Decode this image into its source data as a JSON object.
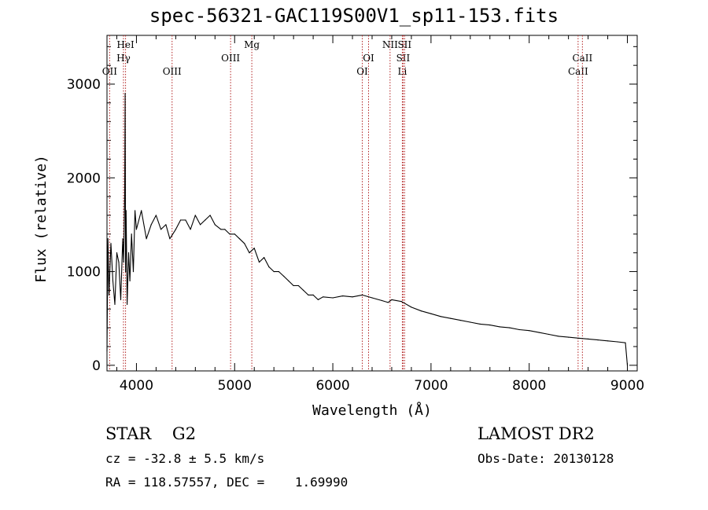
{
  "title": "spec-56321-GAC119S00V1_sp11-153.fits",
  "chart_data": {
    "type": "line",
    "xlabel": "Wavelength (Å)",
    "ylabel": "Flux (relative)",
    "xlim": [
      3700,
      9100
    ],
    "ylim": [
      -60,
      3520
    ],
    "xticks": [
      4000,
      5000,
      6000,
      7000,
      8000,
      9000
    ],
    "yticks": [
      0,
      1000,
      2000,
      3000
    ],
    "series": [
      {
        "x": [
          3700,
          3710,
          3720,
          3740,
          3760,
          3780,
          3800,
          3820,
          3840,
          3860,
          3870,
          3880,
          3885,
          3889,
          3895,
          3905,
          3920,
          3933,
          3950,
          3968,
          3985,
          4000,
          4050,
          4101,
          4150,
          4200,
          4250,
          4300,
          4340,
          4400,
          4450,
          4500,
          4550,
          4600,
          4650,
          4700,
          4750,
          4800,
          4861,
          4900,
          4950,
          5000,
          5050,
          5100,
          5150,
          5200,
          5250,
          5300,
          5350,
          5400,
          5450,
          5500,
          5550,
          5600,
          5650,
          5700,
          5750,
          5800,
          5850,
          5900,
          6000,
          6100,
          6200,
          6300,
          6400,
          6500,
          6563,
          6600,
          6700,
          6800,
          6900,
          7000,
          7100,
          7200,
          7300,
          7400,
          7500,
          7600,
          7700,
          7800,
          7900,
          8000,
          8100,
          8200,
          8300,
          8400,
          8500,
          8600,
          8700,
          8800,
          8900,
          8980,
          9000
        ],
        "y": [
          150,
          1350,
          750,
          1300,
          900,
          650,
          1200,
          1100,
          700,
          1350,
          1100,
          1850,
          2900,
          1000,
          1650,
          650,
          1200,
          900,
          1400,
          1000,
          1650,
          1450,
          1650,
          1350,
          1500,
          1600,
          1450,
          1500,
          1350,
          1450,
          1550,
          1550,
          1450,
          1600,
          1500,
          1550,
          1600,
          1500,
          1450,
          1450,
          1400,
          1400,
          1350,
          1300,
          1200,
          1250,
          1100,
          1150,
          1050,
          1000,
          1000,
          950,
          900,
          850,
          850,
          800,
          750,
          750,
          700,
          730,
          720,
          740,
          730,
          750,
          720,
          690,
          670,
          700,
          680,
          620,
          580,
          550,
          520,
          500,
          480,
          460,
          440,
          430,
          410,
          400,
          380,
          370,
          350,
          330,
          310,
          300,
          290,
          280,
          270,
          260,
          250,
          240,
          0
        ]
      }
    ],
    "lines": [
      {
        "x": 3727,
        "label": "OII",
        "row": 3
      },
      {
        "x": 3868,
        "label": "Hγ",
        "row": 2
      },
      {
        "x": 3889,
        "label": "HeI",
        "row": 1
      },
      {
        "x": 4363,
        "label": "OIII",
        "row": 3
      },
      {
        "x": 4959,
        "label": "OIII",
        "row": 2
      },
      {
        "x": 5175,
        "label": "Mg",
        "row": 1
      },
      {
        "x": 6300,
        "label": "OI",
        "row": 3
      },
      {
        "x": 6364,
        "label": "OI",
        "row": 2
      },
      {
        "x": 6583,
        "label": "NII",
        "row": 1
      },
      {
        "x": 6708,
        "label": "Li",
        "row": 3
      },
      {
        "x": 6716,
        "label": "SII",
        "row": 2
      },
      {
        "x": 6731,
        "label": "SII",
        "row": 1
      },
      {
        "x": 8498,
        "label": "CaII",
        "row": 3
      },
      {
        "x": 8542,
        "label": "CaII",
        "row": 2
      }
    ]
  },
  "footer": {
    "object": "STAR    G2",
    "survey": "LAMOST DR2",
    "cz": "cz = -32.8 ± 5.5 km/s",
    "obsdate": "Obs-Date: 20130128",
    "radec": "RA = 118.57557, DEC =    1.69990"
  }
}
